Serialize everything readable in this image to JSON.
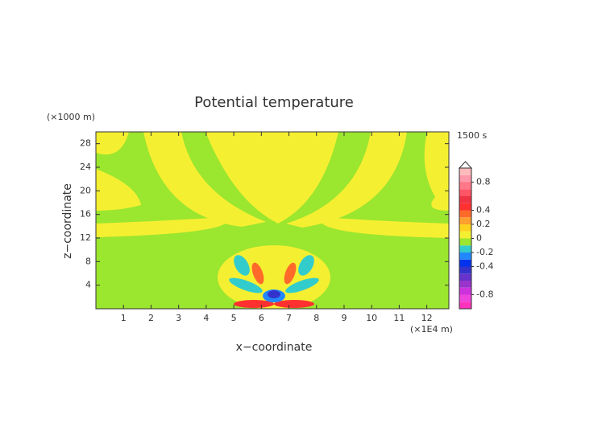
{
  "chart_data": {
    "type": "contour",
    "title": "Potential temperature",
    "time_label": "1500 s",
    "x_label": "x−coordinate",
    "y_label": "z−coordinate",
    "x_unit": "(×1E4 m)",
    "y_unit": "(×1000 m)",
    "xlim": [
      0,
      12.8
    ],
    "xticks": [
      1,
      2,
      3,
      4,
      5,
      6,
      7,
      8,
      9,
      10,
      11,
      12
    ],
    "ylim": [
      0,
      30
    ],
    "yticks": [
      4,
      8,
      12,
      16,
      20,
      24,
      28
    ],
    "colorbar": {
      "lim": [
        -1,
        1
      ],
      "ticks": [
        -0.8,
        -0.4,
        -0.2,
        0,
        0.2,
        0.4,
        0.8
      ],
      "levels": [
        -1,
        -0.9,
        -0.8,
        -0.7,
        -0.6,
        -0.5,
        -0.4,
        -0.3,
        -0.2,
        -0.1,
        0,
        0.1,
        0.2,
        0.3,
        0.4,
        0.5,
        0.6,
        0.7,
        0.8,
        0.9,
        1
      ],
      "colors": [
        "#ff33bb",
        "#ee44dd",
        "#cc33dd",
        "#9933cc",
        "#6633cc",
        "#3333cc",
        "#0033ee",
        "#2288ff",
        "#33cccc",
        "#9be62e",
        "#f5ef32",
        "#ffd21e",
        "#ff9f30",
        "#ff6a2a",
        "#ff3030",
        "#ee3344",
        "#ff5566",
        "#ff7788",
        "#ff99aa",
        "#ffbbbb"
      ]
    }
  }
}
